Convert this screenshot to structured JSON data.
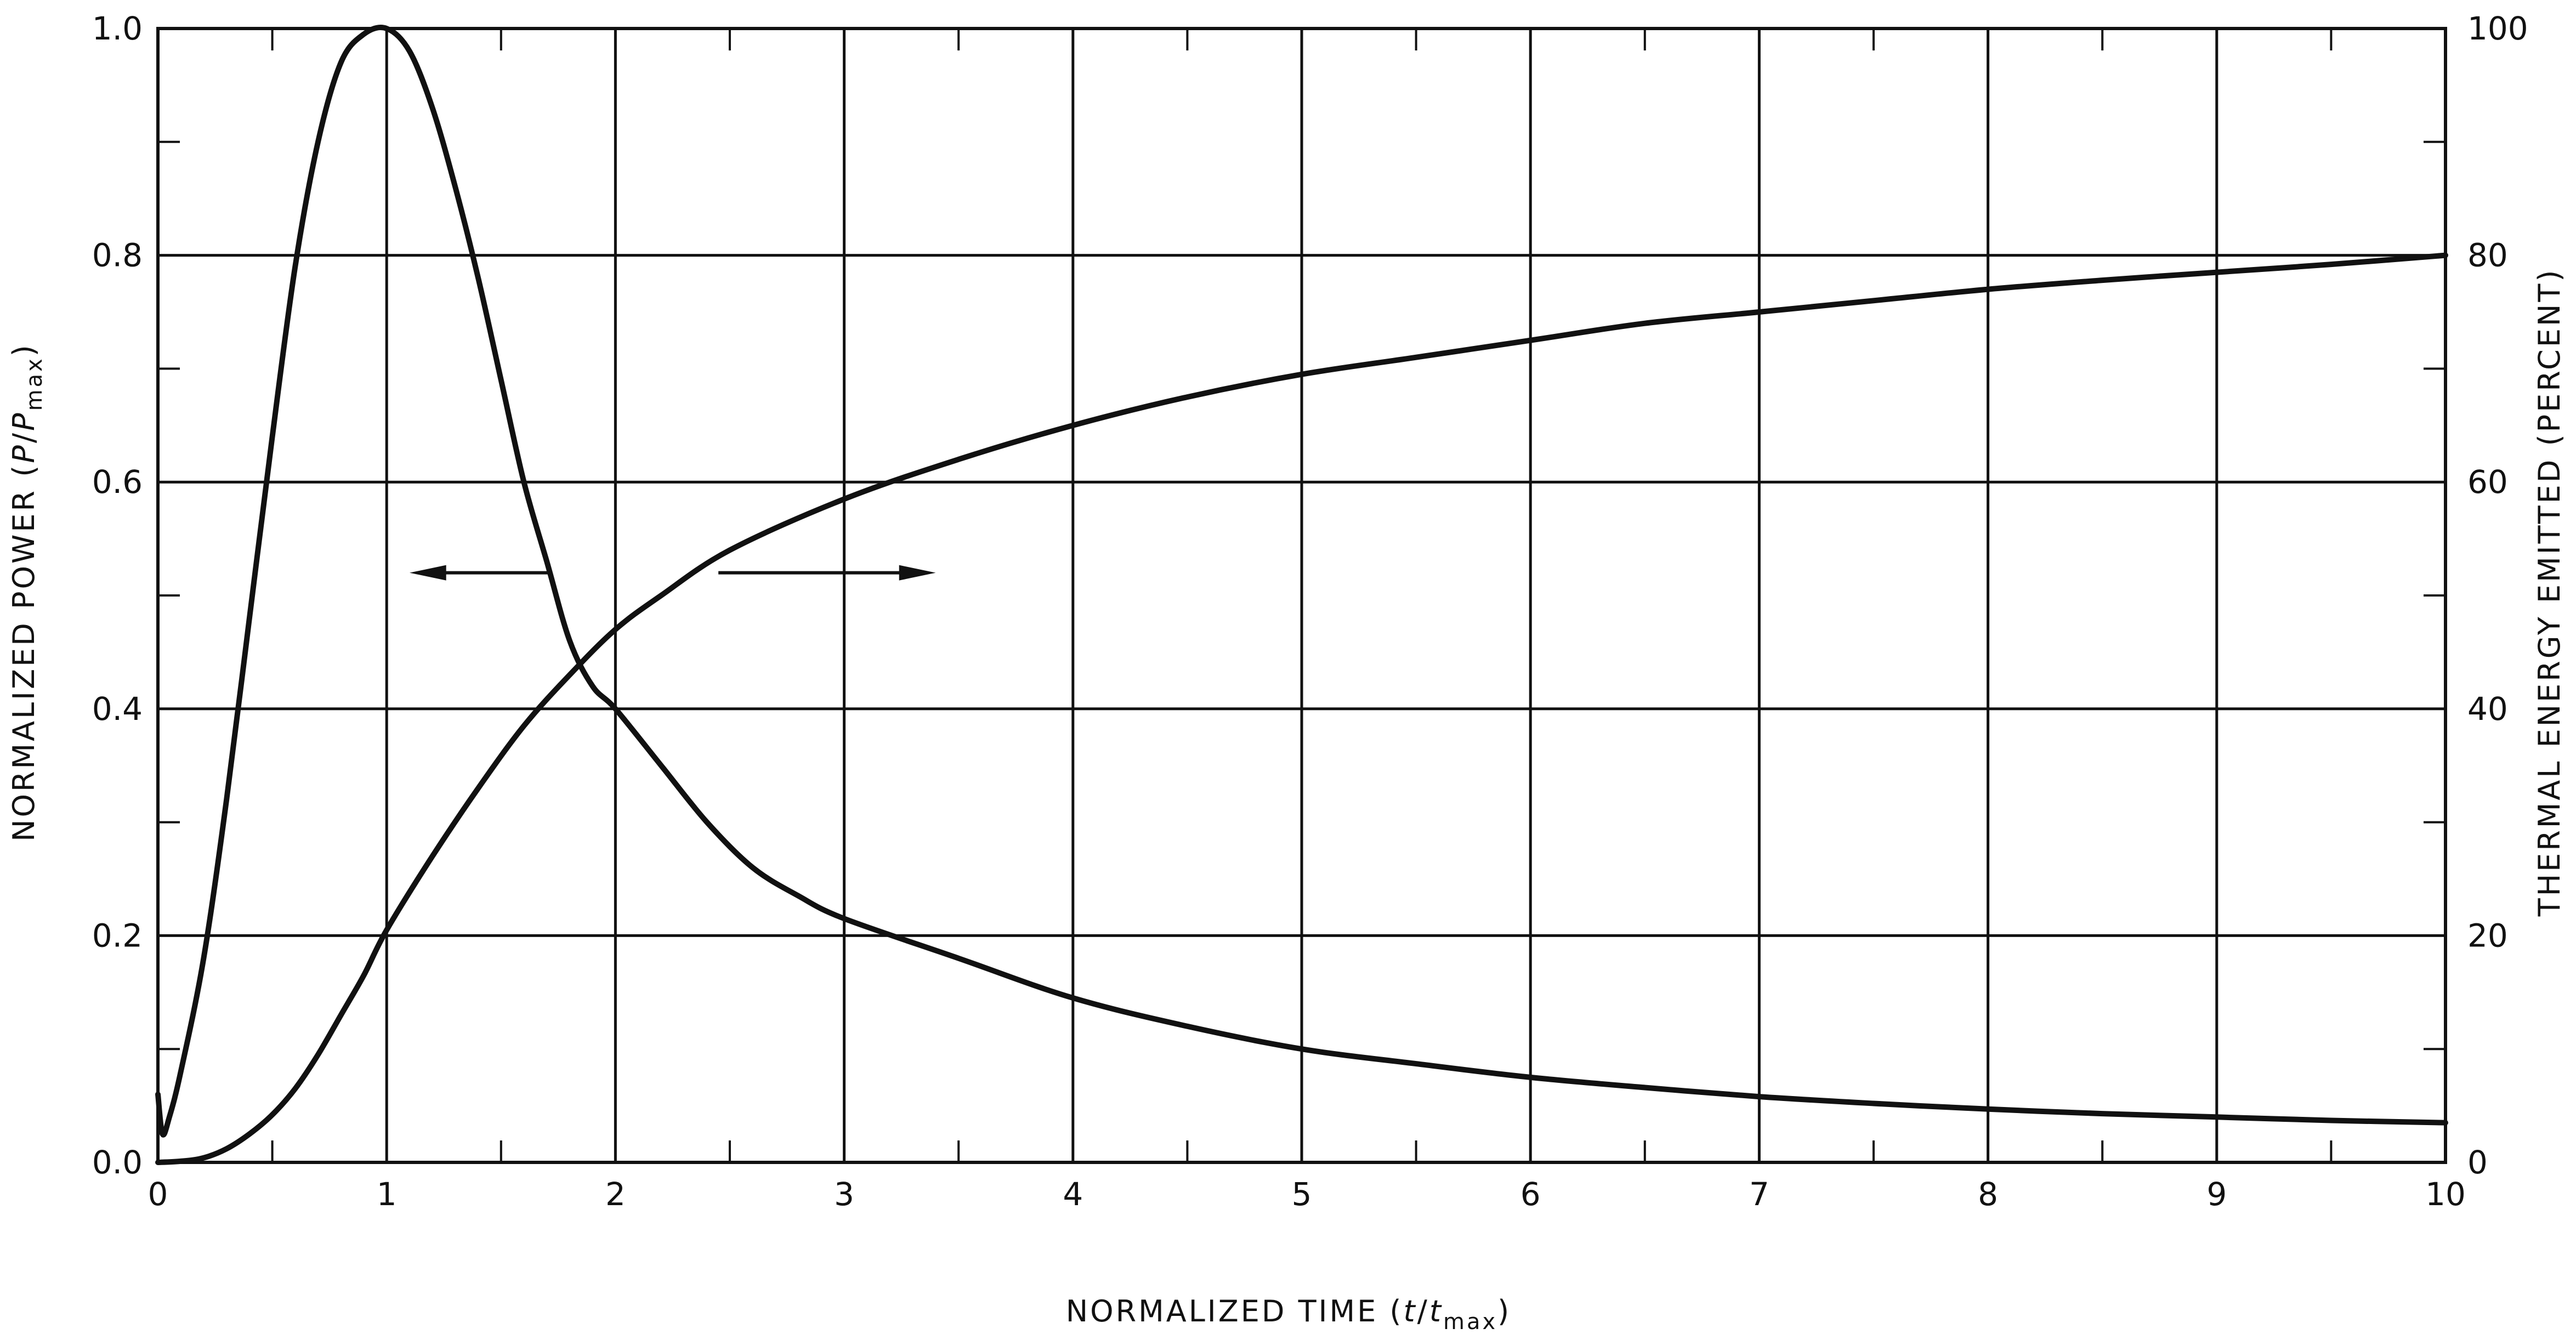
{
  "chart_data": {
    "type": "line",
    "x_axis": {
      "label_main": "NORMALIZED TIME (",
      "label_var": "t",
      "label_sep": "/",
      "label_var2": "t",
      "label_sub": "max",
      "label_close": ")",
      "range": [
        0,
        10
      ],
      "ticks": [
        0,
        1,
        2,
        3,
        4,
        5,
        6,
        7,
        8,
        9,
        10
      ],
      "tick_labels": [
        "0",
        "1",
        "2",
        "3",
        "4",
        "5",
        "6",
        "7",
        "8",
        "9",
        "10"
      ]
    },
    "y_left": {
      "label_main": "NORMALIZED POWER (",
      "label_var": "P",
      "label_sep": "/",
      "label_var2": "P",
      "label_sub": "max",
      "label_close": ")",
      "range": [
        0,
        1.0
      ],
      "ticks": [
        0,
        0.2,
        0.4,
        0.6,
        0.8,
        1.0
      ],
      "tick_labels": [
        "0.0",
        "0.2",
        "0.4",
        "0.6",
        "0.8",
        "1.0"
      ]
    },
    "y_right": {
      "label": "THERMAL ENERGY EMITTED (PERCENT)",
      "range": [
        0,
        100
      ],
      "ticks": [
        0,
        20,
        40,
        60,
        80,
        100
      ],
      "tick_labels": [
        "0",
        "20",
        "40",
        "60",
        "80",
        "100"
      ]
    },
    "grid": true,
    "series": [
      {
        "axis": "left",
        "x": [
          0,
          0.02,
          0.05,
          0.1,
          0.2,
          0.3,
          0.4,
          0.5,
          0.6,
          0.7,
          0.8,
          0.9,
          1.0,
          1.1,
          1.2,
          1.3,
          1.4,
          1.5,
          1.6,
          1.7,
          1.8,
          1.9,
          2.0,
          2.2,
          2.4,
          2.6,
          2.8,
          3.0,
          3.5,
          4.0,
          4.5,
          5.0,
          5.5,
          6.0,
          6.5,
          7.0,
          7.5,
          8.0,
          8.5,
          9.0,
          9.5,
          10.0
        ],
        "values": [
          0.06,
          0.025,
          0.04,
          0.08,
          0.18,
          0.32,
          0.48,
          0.64,
          0.79,
          0.9,
          0.97,
          0.995,
          1.0,
          0.98,
          0.93,
          0.86,
          0.78,
          0.69,
          0.6,
          0.53,
          0.46,
          0.42,
          0.4,
          0.35,
          0.3,
          0.26,
          0.235,
          0.215,
          0.18,
          0.145,
          0.12,
          0.1,
          0.087,
          0.075,
          0.066,
          0.058,
          0.052,
          0.047,
          0.043,
          0.04,
          0.037,
          0.035
        ]
      },
      {
        "axis": "right",
        "x": [
          0,
          0.1,
          0.2,
          0.3,
          0.4,
          0.5,
          0.6,
          0.7,
          0.8,
          0.9,
          1.0,
          1.2,
          1.4,
          1.6,
          1.8,
          2.0,
          2.2,
          2.5,
          3.0,
          3.5,
          4.0,
          4.5,
          5.0,
          5.5,
          6.0,
          6.5,
          7.0,
          7.5,
          8.0,
          8.5,
          9.0,
          9.5,
          10.0
        ],
        "values": [
          0,
          0.1,
          0.4,
          1.2,
          2.5,
          4.2,
          6.5,
          9.5,
          13,
          16.5,
          20.5,
          27,
          33,
          38.5,
          43,
          47,
          50,
          54,
          58.5,
          62,
          65,
          67.5,
          69.5,
          71,
          72.5,
          74,
          75,
          76,
          77,
          77.8,
          78.5,
          79.2,
          80
        ]
      }
    ]
  }
}
